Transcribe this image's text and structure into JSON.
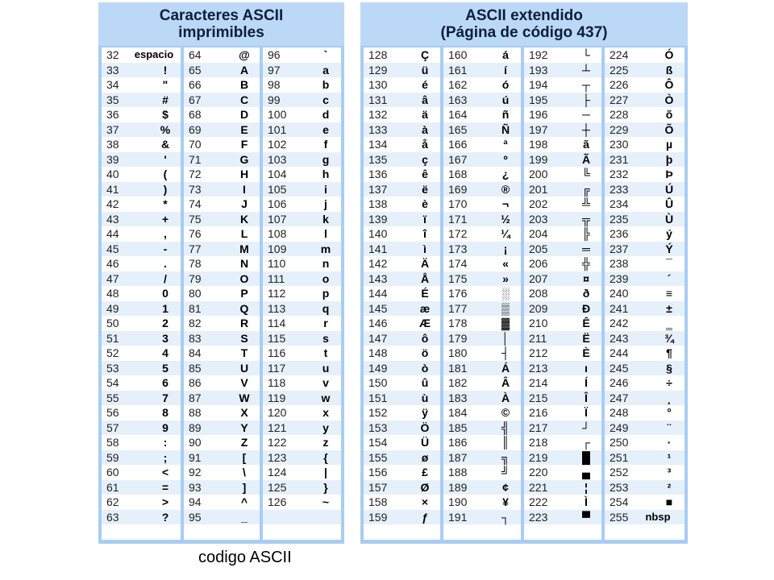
{
  "left_panel": {
    "title_line1": "Caracteres ASCII",
    "title_line2": "imprimibles",
    "columns": [
      {
        "rows": [
          [
            "32",
            "espacio"
          ],
          [
            "33",
            "!"
          ],
          [
            "34",
            "\""
          ],
          [
            "35",
            "#"
          ],
          [
            "36",
            "$"
          ],
          [
            "37",
            "%"
          ],
          [
            "38",
            "&"
          ],
          [
            "39",
            "'"
          ],
          [
            "40",
            "("
          ],
          [
            "41",
            ")"
          ],
          [
            "42",
            "*"
          ],
          [
            "43",
            "+"
          ],
          [
            "44",
            ","
          ],
          [
            "45",
            "-"
          ],
          [
            "46",
            "."
          ],
          [
            "47",
            "/"
          ],
          [
            "48",
            "0"
          ],
          [
            "49",
            "1"
          ],
          [
            "50",
            "2"
          ],
          [
            "51",
            "3"
          ],
          [
            "52",
            "4"
          ],
          [
            "53",
            "5"
          ],
          [
            "54",
            "6"
          ],
          [
            "55",
            "7"
          ],
          [
            "56",
            "8"
          ],
          [
            "57",
            "9"
          ],
          [
            "58",
            ":"
          ],
          [
            "59",
            ";"
          ],
          [
            "60",
            "<"
          ],
          [
            "61",
            "="
          ],
          [
            "62",
            ">"
          ],
          [
            "63",
            "?"
          ]
        ]
      },
      {
        "rows": [
          [
            "64",
            "@"
          ],
          [
            "65",
            "A"
          ],
          [
            "66",
            "B"
          ],
          [
            "67",
            "C"
          ],
          [
            "68",
            "D"
          ],
          [
            "69",
            "E"
          ],
          [
            "70",
            "F"
          ],
          [
            "71",
            "G"
          ],
          [
            "72",
            "H"
          ],
          [
            "73",
            "I"
          ],
          [
            "74",
            "J"
          ],
          [
            "75",
            "K"
          ],
          [
            "76",
            "L"
          ],
          [
            "77",
            "M"
          ],
          [
            "78",
            "N"
          ],
          [
            "79",
            "O"
          ],
          [
            "80",
            "P"
          ],
          [
            "81",
            "Q"
          ],
          [
            "82",
            "R"
          ],
          [
            "83",
            "S"
          ],
          [
            "84",
            "T"
          ],
          [
            "85",
            "U"
          ],
          [
            "86",
            "V"
          ],
          [
            "87",
            "W"
          ],
          [
            "88",
            "X"
          ],
          [
            "89",
            "Y"
          ],
          [
            "90",
            "Z"
          ],
          [
            "91",
            "["
          ],
          [
            "92",
            "\\"
          ],
          [
            "93",
            "]"
          ],
          [
            "94",
            "^"
          ],
          [
            "95",
            "_"
          ]
        ]
      },
      {
        "rows": [
          [
            "96",
            "`"
          ],
          [
            "97",
            "a"
          ],
          [
            "98",
            "b"
          ],
          [
            "99",
            "c"
          ],
          [
            "100",
            "d"
          ],
          [
            "101",
            "e"
          ],
          [
            "102",
            "f"
          ],
          [
            "103",
            "g"
          ],
          [
            "104",
            "h"
          ],
          [
            "105",
            "i"
          ],
          [
            "106",
            "j"
          ],
          [
            "107",
            "k"
          ],
          [
            "108",
            "l"
          ],
          [
            "109",
            "m"
          ],
          [
            "110",
            "n"
          ],
          [
            "111",
            "o"
          ],
          [
            "112",
            "p"
          ],
          [
            "113",
            "q"
          ],
          [
            "114",
            "r"
          ],
          [
            "115",
            "s"
          ],
          [
            "116",
            "t"
          ],
          [
            "117",
            "u"
          ],
          [
            "118",
            "v"
          ],
          [
            "119",
            "w"
          ],
          [
            "120",
            "x"
          ],
          [
            "121",
            "y"
          ],
          [
            "122",
            "z"
          ],
          [
            "123",
            "{"
          ],
          [
            "124",
            "|"
          ],
          [
            "125",
            "}"
          ],
          [
            "126",
            "~"
          ]
        ]
      }
    ]
  },
  "right_panel": {
    "title_line1": "ASCII extendido",
    "title_line2": "(Página de código 437)",
    "columns": [
      {
        "rows": [
          [
            "128",
            "Ç"
          ],
          [
            "129",
            "ü"
          ],
          [
            "130",
            "é"
          ],
          [
            "131",
            "â"
          ],
          [
            "132",
            "ä"
          ],
          [
            "133",
            "à"
          ],
          [
            "134",
            "å"
          ],
          [
            "135",
            "ç"
          ],
          [
            "136",
            "ê"
          ],
          [
            "137",
            "ë"
          ],
          [
            "138",
            "è"
          ],
          [
            "139",
            "ï"
          ],
          [
            "140",
            "î"
          ],
          [
            "141",
            "ì"
          ],
          [
            "142",
            "Ä"
          ],
          [
            "143",
            "Å"
          ],
          [
            "144",
            "É"
          ],
          [
            "145",
            "æ"
          ],
          [
            "146",
            "Æ"
          ],
          [
            "147",
            "ô"
          ],
          [
            "148",
            "ö"
          ],
          [
            "149",
            "ò"
          ],
          [
            "150",
            "û"
          ],
          [
            "151",
            "ù"
          ],
          [
            "152",
            "ÿ"
          ],
          [
            "153",
            "Ö"
          ],
          [
            "154",
            "Ü"
          ],
          [
            "155",
            "ø"
          ],
          [
            "156",
            "£"
          ],
          [
            "157",
            "Ø"
          ],
          [
            "158",
            "×"
          ],
          [
            "159",
            "ƒ"
          ]
        ]
      },
      {
        "rows": [
          [
            "160",
            "á"
          ],
          [
            "161",
            "í"
          ],
          [
            "162",
            "ó"
          ],
          [
            "163",
            "ú"
          ],
          [
            "164",
            "ñ"
          ],
          [
            "165",
            "Ñ"
          ],
          [
            "166",
            "ª"
          ],
          [
            "167",
            "º"
          ],
          [
            "168",
            "¿"
          ],
          [
            "169",
            "®"
          ],
          [
            "170",
            "¬"
          ],
          [
            "171",
            "½"
          ],
          [
            "172",
            "¼"
          ],
          [
            "173",
            "¡"
          ],
          [
            "174",
            "«"
          ],
          [
            "175",
            "»"
          ],
          [
            "176",
            "░"
          ],
          [
            "177",
            "▒"
          ],
          [
            "178",
            "▓"
          ],
          [
            "179",
            "│"
          ],
          [
            "180",
            "┤"
          ],
          [
            "181",
            "Á"
          ],
          [
            "182",
            "Â"
          ],
          [
            "183",
            "À"
          ],
          [
            "184",
            "©"
          ],
          [
            "185",
            "╣"
          ],
          [
            "186",
            "║"
          ],
          [
            "187",
            "╗"
          ],
          [
            "188",
            "╝"
          ],
          [
            "189",
            "¢"
          ],
          [
            "190",
            "¥"
          ],
          [
            "191",
            "┐"
          ]
        ]
      },
      {
        "rows": [
          [
            "192",
            "└"
          ],
          [
            "193",
            "┴"
          ],
          [
            "194",
            "┬"
          ],
          [
            "195",
            "├"
          ],
          [
            "196",
            "─"
          ],
          [
            "197",
            "┼"
          ],
          [
            "198",
            "ã"
          ],
          [
            "199",
            "Ã"
          ],
          [
            "200",
            "╚"
          ],
          [
            "201",
            "╔"
          ],
          [
            "202",
            "╩"
          ],
          [
            "203",
            "╦"
          ],
          [
            "204",
            "╠"
          ],
          [
            "205",
            "═"
          ],
          [
            "206",
            "╬"
          ],
          [
            "207",
            "¤"
          ],
          [
            "208",
            "ð"
          ],
          [
            "209",
            "Ð"
          ],
          [
            "210",
            "Ê"
          ],
          [
            "211",
            "Ë"
          ],
          [
            "212",
            "È"
          ],
          [
            "213",
            "ı"
          ],
          [
            "214",
            "Í"
          ],
          [
            "215",
            "Î"
          ],
          [
            "216",
            "Ï"
          ],
          [
            "217",
            "┘"
          ],
          [
            "218",
            "┌"
          ],
          [
            "219",
            "█"
          ],
          [
            "220",
            "▄"
          ],
          [
            "221",
            "¦"
          ],
          [
            "222",
            "Ì"
          ],
          [
            "223",
            "▀"
          ]
        ]
      },
      {
        "rows": [
          [
            "224",
            "Ó"
          ],
          [
            "225",
            "ß"
          ],
          [
            "226",
            "Ô"
          ],
          [
            "227",
            "Ò"
          ],
          [
            "228",
            "õ"
          ],
          [
            "229",
            "Õ"
          ],
          [
            "230",
            "µ"
          ],
          [
            "231",
            "þ"
          ],
          [
            "232",
            "Þ"
          ],
          [
            "233",
            "Ú"
          ],
          [
            "234",
            "Û"
          ],
          [
            "235",
            "Ù"
          ],
          [
            "236",
            "ý"
          ],
          [
            "237",
            "Ý"
          ],
          [
            "238",
            "¯"
          ],
          [
            "239",
            "´"
          ],
          [
            "240",
            "≡"
          ],
          [
            "241",
            "±"
          ],
          [
            "242",
            "‗"
          ],
          [
            "243",
            "¾"
          ],
          [
            "244",
            "¶"
          ],
          [
            "245",
            "§"
          ],
          [
            "246",
            "÷"
          ],
          [
            "247",
            "¸"
          ],
          [
            "248",
            "°"
          ],
          [
            "249",
            "¨"
          ],
          [
            "250",
            "·"
          ],
          [
            "251",
            "¹"
          ],
          [
            "252",
            "³"
          ],
          [
            "253",
            "²"
          ],
          [
            "254",
            "■"
          ],
          [
            "255",
            "nbsp"
          ]
        ]
      }
    ]
  },
  "caption": "codigo ASCII",
  "colors": {
    "panel": "#a9cdf2",
    "header": "#bcd8f7",
    "row_alt": "#e6f0fa"
  }
}
